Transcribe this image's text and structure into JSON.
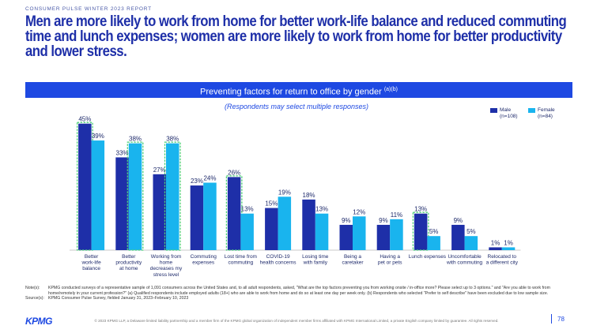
{
  "report_label": "CONSUMER PULSE WINTER 2023 REPORT",
  "headline": "Men are more likely to work from home for better work-life balance and reduced commuting time and lunch expenses; women are more likely to work from home for better productivity and lower stress.",
  "banner": {
    "title": "Preventing factors for return to office by gender",
    "sup": "(a)(b)"
  },
  "chart_data": {
    "type": "bar",
    "subtitle": "(Respondents may select multiple responses)",
    "categories": [
      [
        "Better",
        "work-life",
        "balance"
      ],
      [
        "Better",
        "productivity",
        "at home"
      ],
      [
        "Working from",
        "home",
        "decreases my",
        "stress level"
      ],
      [
        "Commuting",
        "expenses"
      ],
      [
        "Lost time from",
        "commuting"
      ],
      [
        "COVID-19",
        "health concerns"
      ],
      [
        "Losing time",
        "with family"
      ],
      [
        "Being a",
        "caretaker"
      ],
      [
        "Having a",
        "pet or pets"
      ],
      [
        "Lunch expenses"
      ],
      [
        "Uncomfortable",
        "with commuting"
      ],
      [
        "Relocated to",
        "a different city"
      ]
    ],
    "series": [
      {
        "name": "Male",
        "note": "(n=108)",
        "color": "#1e2fa8",
        "values": [
          45,
          33,
          27,
          23,
          26,
          15,
          18,
          9,
          9,
          13,
          9,
          1
        ]
      },
      {
        "name": "Female",
        "note": "(n=84)",
        "color": "#19b4ee",
        "values": [
          39,
          38,
          38,
          24,
          13,
          19,
          13,
          12,
          11,
          5,
          5,
          1
        ]
      }
    ],
    "value_suffix": "%",
    "ylim": [
      0,
      48
    ],
    "highlight": [
      {
        "category": 0,
        "series": 0
      },
      {
        "category": 1,
        "series": 1
      },
      {
        "category": 2,
        "series": 1
      },
      {
        "category": 4,
        "series": 0
      },
      {
        "category": 9,
        "series": 0
      }
    ],
    "highlight_color": "#4fd17a",
    "legend_position": "top-right"
  },
  "notes": [
    {
      "key": "Note(s):",
      "text": "KPMG conducted surveys of a representative sample of 1,091 consumers across the United States and, to all adult respondents, asked, \"What are the top factors preventing you from working onsite / in-office more? Please select up to 3 options.\" and \"Are you able to work from home/remotely in your current profession?\" (a) Qualified respondents include employed adults (18+) who are able to work from home and do so at least one day per week only. (b) Respondents who selected \"Prefer to self describe\" have been excluded due to low sample size."
    },
    {
      "key": "Source(s):",
      "text": "KPMG Consumer Pulse Survey, fielded January 31, 2023–February 10, 2023"
    }
  ],
  "footer": {
    "logo": "KPMG",
    "legal": "© 2023 KPMG LLP, a Delaware limited liability partnership and a member firm of the KPMG global organization of independent member firms affiliated with KPMG International Limited, a private English company limited by guarantee. All rights reserved.",
    "page": "78"
  }
}
